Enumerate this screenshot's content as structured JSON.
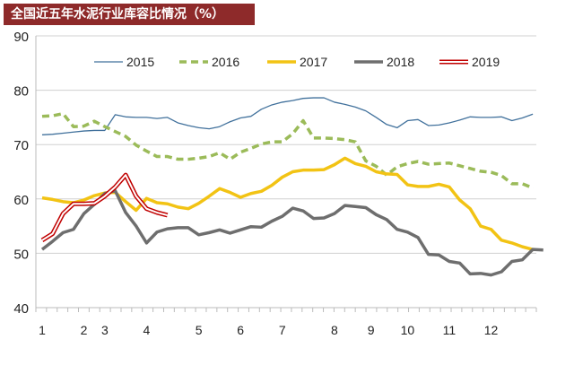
{
  "title": "全国近五年水泥行业库容比情况（%）",
  "chart_data": {
    "type": "line",
    "title": "全国近五年水泥行业库容比情况（%）",
    "ylim": [
      40,
      90
    ],
    "yticks": [
      40,
      50,
      60,
      70,
      80,
      90
    ],
    "xticks": [
      {
        "label": "1",
        "week": 0
      },
      {
        "label": "2",
        "week": 4
      },
      {
        "label": "3",
        "week": 6
      },
      {
        "label": "4",
        "week": 10
      },
      {
        "label": "5",
        "week": 15
      },
      {
        "label": "6",
        "week": 19
      },
      {
        "label": "7",
        "week": 23
      },
      {
        "label": "8",
        "week": 28
      },
      {
        "label": "9",
        "week": 31.5
      },
      {
        "label": "10",
        "week": 35
      },
      {
        "label": "11",
        "week": 39
      },
      {
        "label": "12",
        "week": 43
      }
    ],
    "grid": "horizontal",
    "legend": "top",
    "series": [
      {
        "name": "2015",
        "color": "#41719c",
        "style": "thin",
        "values": [
          71.8,
          71.9,
          72.1,
          72.3,
          72.5,
          72.6,
          72.6,
          75.5,
          75.1,
          75.0,
          75.0,
          74.8,
          75.0,
          74.0,
          73.5,
          73.1,
          72.9,
          73.3,
          74.2,
          74.9,
          75.2,
          76.5,
          77.3,
          77.8,
          78.1,
          78.5,
          78.6,
          78.6,
          77.8,
          77.4,
          76.9,
          76.2,
          75.0,
          73.7,
          73.1,
          74.4,
          74.6,
          73.5,
          73.6,
          74.0,
          74.5,
          75.1,
          75.0,
          75.0,
          75.1,
          74.4,
          74.9,
          75.6
        ]
      },
      {
        "name": "2016",
        "color": "#9bbb59",
        "style": "dashed",
        "values": [
          75.2,
          75.3,
          75.7,
          73.3,
          73.4,
          74.3,
          73.3,
          72.4,
          71.5,
          69.9,
          68.8,
          67.8,
          67.8,
          67.3,
          67.3,
          67.5,
          67.8,
          68.5,
          67.3,
          68.6,
          69.3,
          70.1,
          70.5,
          70.5,
          72.0,
          74.4,
          71.2,
          71.2,
          71.1,
          70.9,
          70.5,
          67.0,
          66.0,
          64.4,
          65.9,
          66.5,
          66.9,
          66.4,
          66.5,
          66.6,
          66.1,
          65.6,
          65.1,
          64.9,
          64.3,
          62.8,
          62.8,
          62.0
        ]
      },
      {
        "name": "2017",
        "color": "#f2c314",
        "style": "thick",
        "values": [
          60.2,
          59.9,
          59.5,
          59.3,
          59.8,
          60.6,
          61.1,
          61.2,
          59.5,
          57.9,
          60.1,
          59.3,
          59.1,
          58.5,
          58.2,
          59.2,
          60.5,
          61.9,
          61.2,
          60.3,
          61.0,
          61.4,
          62.5,
          64.0,
          65.0,
          65.3,
          65.3,
          65.4,
          66.3,
          67.5,
          66.5,
          66.0,
          65.0,
          64.6,
          64.5,
          62.6,
          62.3,
          62.3,
          62.7,
          62.2,
          59.8,
          58.2,
          55.0,
          54.4,
          52.4,
          51.9,
          51.2,
          50.7
        ]
      },
      {
        "name": "2018",
        "color": "#6e6e6e",
        "style": "thick",
        "values": [
          50.7,
          52.2,
          53.8,
          54.4,
          57.3,
          59.0,
          61.0,
          61.5,
          57.5,
          55.0,
          51.9,
          53.9,
          54.5,
          54.7,
          54.7,
          53.4,
          53.8,
          54.3,
          53.7,
          54.3,
          54.9,
          54.8,
          55.9,
          56.8,
          58.3,
          57.8,
          56.4,
          56.5,
          57.3,
          58.8,
          58.6,
          58.4,
          57.1,
          56.2,
          54.4,
          53.9,
          52.9,
          49.8,
          49.7,
          48.5,
          48.2,
          46.2,
          46.3,
          46.0,
          46.6,
          48.5,
          48.8,
          50.7,
          50.6
        ]
      },
      {
        "name": "2019",
        "color": "#c00000",
        "style": "outline",
        "values": [
          52.4,
          53.6,
          57.3,
          59.1,
          59.1,
          59.2,
          60.5,
          62.2,
          64.4,
          60.5,
          58.2,
          57.5,
          57.0
        ]
      }
    ]
  }
}
